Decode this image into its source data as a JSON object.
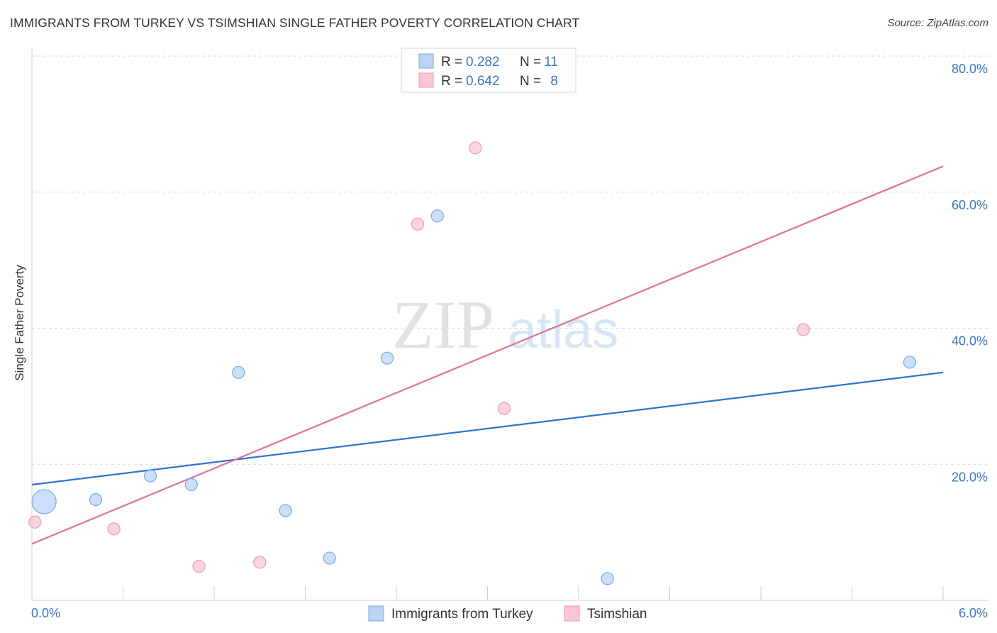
{
  "header": {
    "title": "IMMIGRANTS FROM TURKEY VS TSIMSHIAN SINGLE FATHER POVERTY CORRELATION CHART",
    "source": "Source: ZipAtlas.com"
  },
  "watermark": {
    "zip": "ZIP",
    "atlas": "atlas"
  },
  "colors": {
    "blue_fill": "#b9d4f5",
    "blue_stroke": "#7aa9e0",
    "blue_line": "#2f74d0",
    "pink_fill": "#f8c6d4",
    "pink_stroke": "#eb9ab3",
    "pink_line": "#e2709a",
    "value_text": "#3a76cc",
    "grid": "#d8d8d8"
  },
  "chart_data": {
    "type": "scatter",
    "title": "IMMIGRANTS FROM TURKEY VS TSIMSHIAN SINGLE FATHER POVERTY CORRELATION CHART",
    "xlabel": "",
    "ylabel": "Single Father Poverty",
    "xlim": [
      0,
      6
    ],
    "ylim": [
      0,
      80
    ],
    "x_tick_labels": [
      {
        "value": 0,
        "label": "0.0%"
      },
      {
        "value": 6,
        "label": "6.0%"
      }
    ],
    "y_ticks": [
      {
        "value": 20,
        "label": "20.0%"
      },
      {
        "value": 40,
        "label": "40.0%"
      },
      {
        "value": 60,
        "label": "60.0%"
      },
      {
        "value": 80,
        "label": "80.0%"
      }
    ],
    "legend": {
      "position": "top-center",
      "rows": [
        {
          "r_label": "R =",
          "r_value": "0.282",
          "n_label": "N =",
          "n_value": "11"
        },
        {
          "r_label": "R =",
          "r_value": "0.642",
          "n_label": "N =",
          "n_value": "8"
        }
      ]
    },
    "series": [
      {
        "name": "Immigrants from Turkey",
        "color": "#b9d4f5",
        "points": [
          {
            "x": 0.08,
            "y": 14.5,
            "size": "large"
          },
          {
            "x": 0.42,
            "y": 14.8
          },
          {
            "x": 0.78,
            "y": 18.3
          },
          {
            "x": 1.05,
            "y": 17.0
          },
          {
            "x": 1.36,
            "y": 33.5
          },
          {
            "x": 1.67,
            "y": 13.2
          },
          {
            "x": 1.96,
            "y": 6.2
          },
          {
            "x": 2.34,
            "y": 35.6
          },
          {
            "x": 2.67,
            "y": 56.5
          },
          {
            "x": 3.79,
            "y": 3.2
          },
          {
            "x": 5.78,
            "y": 35.0
          }
        ],
        "trend": {
          "x0": 0,
          "y0": 17.0,
          "x1": 6,
          "y1": 33.5
        }
      },
      {
        "name": "Tsimshian",
        "color": "#f8c6d4",
        "points": [
          {
            "x": 0.02,
            "y": 11.5
          },
          {
            "x": 0.54,
            "y": 10.5
          },
          {
            "x": 1.1,
            "y": 5.0
          },
          {
            "x": 1.5,
            "y": 5.6
          },
          {
            "x": 2.54,
            "y": 55.3
          },
          {
            "x": 2.92,
            "y": 66.5
          },
          {
            "x": 3.11,
            "y": 28.2
          },
          {
            "x": 5.08,
            "y": 39.8
          }
        ],
        "trend": {
          "x0": 0,
          "y0": 8.3,
          "x1": 6,
          "y1": 63.8
        }
      }
    ]
  }
}
